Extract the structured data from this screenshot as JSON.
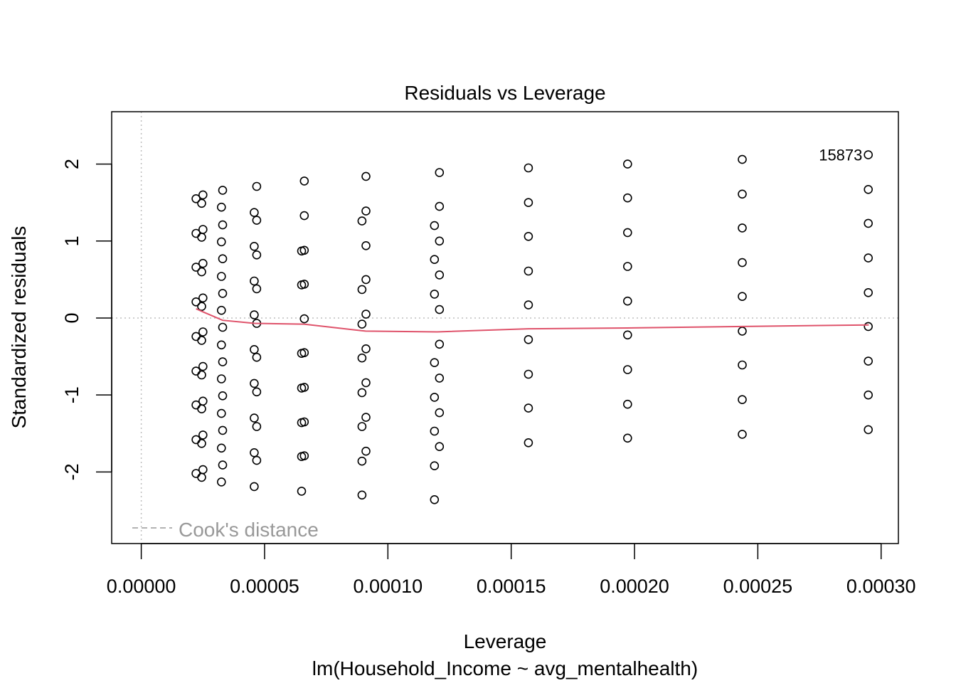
{
  "chart_data": {
    "type": "scatter",
    "title": "Residuals vs Leverage",
    "xlabel": "Leverage",
    "subtitle": "lm(Household_Income ~ avg_mentalhealth)",
    "ylabel": "Standardized residuals",
    "xlim": [
      -1.2e-05,
      0.000307
    ],
    "ylim": [
      -2.93,
      2.68
    ],
    "x_ticks": [
      0.0,
      5e-05,
      0.0001,
      0.00015,
      0.0002,
      0.00025,
      0.0003
    ],
    "x_tick_labels": [
      "0.00000",
      "0.00005",
      "0.00010",
      "0.00015",
      "0.00020",
      "0.00025",
      "0.00030"
    ],
    "y_ticks": [
      -2,
      -1,
      0,
      1,
      2
    ],
    "y_tick_labels": [
      "-2",
      "-1",
      "0",
      "1",
      "2"
    ],
    "grid": false,
    "reference_lines": {
      "x": 0,
      "y": 0,
      "style": "dotted",
      "color": "#bebebe"
    },
    "legend": {
      "placement": "bottom-left",
      "label": "Cook's distance",
      "style": "dashed",
      "color": "#999999"
    },
    "point_labels": [
      {
        "x": 0.000295,
        "y": 2.12,
        "label": "15873"
      }
    ],
    "colors": {
      "points": "#000000",
      "smooth": "#DF536B",
      "reference": "#bebebe",
      "legend": "#999999"
    },
    "points": [
      [
        2.22e-05,
        1.55
      ],
      [
        2.22e-05,
        1.1
      ],
      [
        2.22e-05,
        0.66
      ],
      [
        2.22e-05,
        0.21
      ],
      [
        2.22e-05,
        -0.24
      ],
      [
        2.22e-05,
        -0.69
      ],
      [
        2.22e-05,
        -1.13
      ],
      [
        2.22e-05,
        -1.58
      ],
      [
        2.22e-05,
        -2.02
      ],
      [
        2.5e-05,
        1.6
      ],
      [
        2.5e-05,
        1.15
      ],
      [
        2.5e-05,
        0.71
      ],
      [
        2.5e-05,
        0.26
      ],
      [
        2.5e-05,
        -0.18
      ],
      [
        2.5e-05,
        -0.63
      ],
      [
        2.5e-05,
        -1.08
      ],
      [
        2.5e-05,
        -1.52
      ],
      [
        2.5e-05,
        -1.97
      ],
      [
        2.45e-05,
        1.49
      ],
      [
        2.45e-05,
        1.05
      ],
      [
        2.45e-05,
        0.6
      ],
      [
        2.45e-05,
        0.15
      ],
      [
        2.45e-05,
        -0.29
      ],
      [
        2.45e-05,
        -0.74
      ],
      [
        2.45e-05,
        -1.18
      ],
      [
        2.45e-05,
        -1.63
      ],
      [
        2.45e-05,
        -2.07
      ],
      [
        3.3e-05,
        1.66
      ],
      [
        3.3e-05,
        1.21
      ],
      [
        3.3e-05,
        0.77
      ],
      [
        3.3e-05,
        0.32
      ],
      [
        3.3e-05,
        -0.12
      ],
      [
        3.3e-05,
        -0.57
      ],
      [
        3.3e-05,
        -1.01
      ],
      [
        3.3e-05,
        -1.46
      ],
      [
        3.3e-05,
        -1.91
      ],
      [
        3.25e-05,
        1.44
      ],
      [
        3.25e-05,
        0.99
      ],
      [
        3.25e-05,
        0.54
      ],
      [
        3.25e-05,
        0.1
      ],
      [
        3.25e-05,
        -0.35
      ],
      [
        3.25e-05,
        -0.79
      ],
      [
        3.25e-05,
        -1.24
      ],
      [
        3.25e-05,
        -1.69
      ],
      [
        3.25e-05,
        -2.13
      ],
      [
        4.68e-05,
        1.71
      ],
      [
        4.68e-05,
        1.27
      ],
      [
        4.68e-05,
        0.82
      ],
      [
        4.68e-05,
        0.38
      ],
      [
        4.68e-05,
        -0.07
      ],
      [
        4.68e-05,
        -0.51
      ],
      [
        4.68e-05,
        -0.96
      ],
      [
        4.68e-05,
        -1.41
      ],
      [
        4.68e-05,
        -1.85
      ],
      [
        4.58e-05,
        1.37
      ],
      [
        4.58e-05,
        0.93
      ],
      [
        4.58e-05,
        0.48
      ],
      [
        4.58e-05,
        0.04
      ],
      [
        4.58e-05,
        -0.41
      ],
      [
        4.58e-05,
        -0.85
      ],
      [
        4.58e-05,
        -1.3
      ],
      [
        4.58e-05,
        -1.75
      ],
      [
        4.58e-05,
        -2.19
      ],
      [
        6.61e-05,
        1.78
      ],
      [
        6.61e-05,
        1.33
      ],
      [
        6.61e-05,
        0.88
      ],
      [
        6.61e-05,
        0.44
      ],
      [
        6.61e-05,
        -0.01
      ],
      [
        6.61e-05,
        -0.45
      ],
      [
        6.61e-05,
        -0.9
      ],
      [
        6.61e-05,
        -1.35
      ],
      [
        6.61e-05,
        -1.79
      ],
      [
        6.5e-05,
        0.87
      ],
      [
        6.5e-05,
        0.43
      ],
      [
        6.5e-05,
        -0.46
      ],
      [
        6.5e-05,
        -0.91
      ],
      [
        6.5e-05,
        -1.36
      ],
      [
        6.5e-05,
        -1.8
      ],
      [
        6.5e-05,
        -2.25
      ],
      [
        9.11e-05,
        1.84
      ],
      [
        9.11e-05,
        1.39
      ],
      [
        9.11e-05,
        0.94
      ],
      [
        9.11e-05,
        0.5
      ],
      [
        9.11e-05,
        0.05
      ],
      [
        9.11e-05,
        -0.4
      ],
      [
        9.11e-05,
        -0.84
      ],
      [
        9.11e-05,
        -1.29
      ],
      [
        9.11e-05,
        -1.73
      ],
      [
        8.95e-05,
        1.26
      ],
      [
        8.95e-05,
        0.37
      ],
      [
        8.95e-05,
        -0.08
      ],
      [
        8.95e-05,
        -0.52
      ],
      [
        8.95e-05,
        -0.97
      ],
      [
        8.95e-05,
        -1.41
      ],
      [
        8.95e-05,
        -1.86
      ],
      [
        8.95e-05,
        -2.3
      ],
      [
        0.0001209,
        1.89
      ],
      [
        0.0001209,
        1.45
      ],
      [
        0.0001209,
        1.0
      ],
      [
        0.0001209,
        0.56
      ],
      [
        0.0001209,
        0.11
      ],
      [
        0.0001209,
        -0.34
      ],
      [
        0.0001209,
        -0.78
      ],
      [
        0.0001209,
        -1.23
      ],
      [
        0.0001209,
        -1.67
      ],
      [
        0.0001189,
        1.2
      ],
      [
        0.0001189,
        0.76
      ],
      [
        0.0001189,
        0.31
      ],
      [
        0.0001189,
        -0.58
      ],
      [
        0.0001189,
        -1.03
      ],
      [
        0.0001189,
        -1.47
      ],
      [
        0.0001189,
        -1.92
      ],
      [
        0.0001189,
        -2.36
      ],
      [
        0.000157,
        1.95
      ],
      [
        0.000157,
        1.5
      ],
      [
        0.000157,
        1.06
      ],
      [
        0.000157,
        0.61
      ],
      [
        0.000157,
        0.17
      ],
      [
        0.000157,
        -0.28
      ],
      [
        0.000157,
        -0.73
      ],
      [
        0.000157,
        -1.17
      ],
      [
        0.000157,
        -1.62
      ],
      [
        0.0001972,
        2.0
      ],
      [
        0.0001972,
        1.56
      ],
      [
        0.0001972,
        1.11
      ],
      [
        0.0001972,
        0.67
      ],
      [
        0.0001972,
        0.22
      ],
      [
        0.0001972,
        -0.22
      ],
      [
        0.0001972,
        -0.67
      ],
      [
        0.0001972,
        -1.12
      ],
      [
        0.0001972,
        -1.56
      ],
      [
        0.0002437,
        2.06
      ],
      [
        0.0002437,
        1.61
      ],
      [
        0.0002437,
        1.17
      ],
      [
        0.0002437,
        0.72
      ],
      [
        0.0002437,
        0.28
      ],
      [
        0.0002437,
        -0.17
      ],
      [
        0.0002437,
        -0.61
      ],
      [
        0.0002437,
        -1.06
      ],
      [
        0.0002437,
        -1.51
      ],
      [
        0.0002948,
        2.12
      ],
      [
        0.0002948,
        1.67
      ],
      [
        0.0002948,
        1.23
      ],
      [
        0.0002948,
        0.78
      ],
      [
        0.0002948,
        0.33
      ],
      [
        0.0002948,
        -0.11
      ],
      [
        0.0002948,
        -0.56
      ],
      [
        0.0002948,
        -1.0
      ],
      [
        0.0002948,
        -1.45
      ]
    ],
    "smooth_line": [
      [
        2.22e-05,
        0.12
      ],
      [
        2.5e-05,
        0.08
      ],
      [
        3.3e-05,
        -0.03
      ],
      [
        4.6e-05,
        -0.07
      ],
      [
        6.6e-05,
        -0.08
      ],
      [
        9.1e-05,
        -0.17
      ],
      [
        0.00012,
        -0.18
      ],
      [
        0.000157,
        -0.14
      ],
      [
        0.000197,
        -0.13
      ],
      [
        0.000244,
        -0.11
      ],
      [
        0.000295,
        -0.09
      ]
    ]
  }
}
